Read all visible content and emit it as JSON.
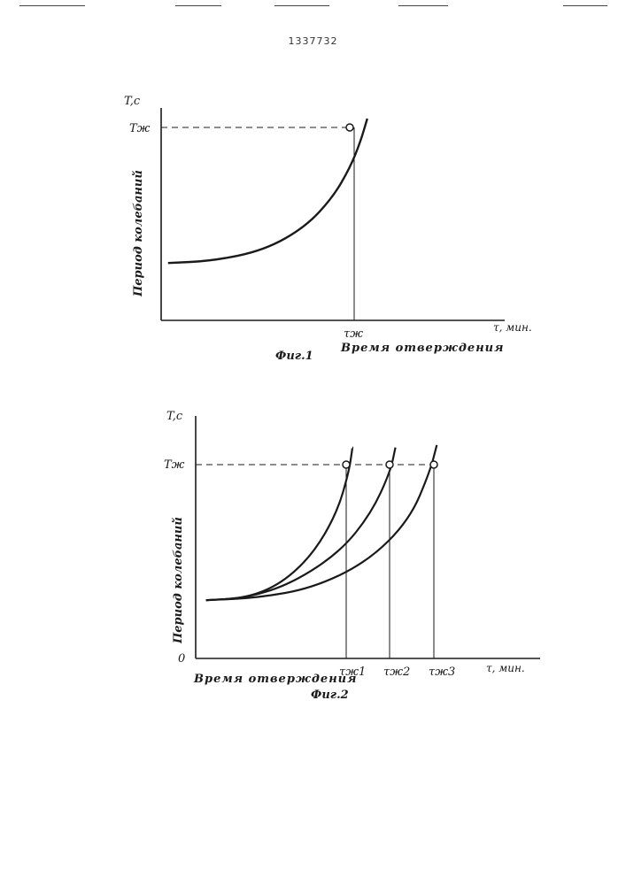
{
  "header": {
    "patent_number": "1337732"
  },
  "chart_data": [
    {
      "type": "line",
      "caption": "Фиг.1",
      "ylabel": "Период колебаний",
      "y_unit_label": "T,c",
      "xlabel": "Время отверждения",
      "x_unit_label": "τ, мин.",
      "ytick_labels": [
        "Tж"
      ],
      "xtick_labels": [
        "τж"
      ],
      "xlim": [
        0,
        1
      ],
      "ylim": [
        0,
        1
      ],
      "threshold": {
        "label": "Tж",
        "value": 0.91
      },
      "series": [
        {
          "name": "curve",
          "x": [
            0.02,
            0.15,
            0.3,
            0.42,
            0.5,
            0.55,
            0.58,
            0.6
          ],
          "y": [
            0.27,
            0.28,
            0.33,
            0.44,
            0.58,
            0.72,
            0.84,
            0.95
          ]
        }
      ],
      "markers": [
        {
          "label": "τж",
          "x": 0.57,
          "y": 0.91
        }
      ]
    },
    {
      "type": "line",
      "caption": "Фиг.2",
      "ylabel": "Период колебаний",
      "y_unit_label": "T,c",
      "origin_label": "0",
      "xlabel": "Время отверждения",
      "x_unit_label": "τ, мин.",
      "ytick_labels": [
        "Tж"
      ],
      "xtick_labels": [
        "τж1",
        "τж2",
        "τж3"
      ],
      "xlim": [
        0,
        1
      ],
      "ylim": [
        0,
        1
      ],
      "threshold": {
        "label": "Tж",
        "value": 0.8
      },
      "series": [
        {
          "name": "curve-1",
          "x": [
            0.03,
            0.15,
            0.25,
            0.34,
            0.41,
            0.445,
            0.455
          ],
          "y": [
            0.24,
            0.25,
            0.31,
            0.43,
            0.6,
            0.77,
            0.87
          ]
        },
        {
          "name": "curve-2",
          "x": [
            0.03,
            0.15,
            0.28,
            0.42,
            0.51,
            0.565,
            0.58
          ],
          "y": [
            0.24,
            0.25,
            0.31,
            0.44,
            0.6,
            0.77,
            0.87
          ]
        },
        {
          "name": "curve-3",
          "x": [
            0.03,
            0.18,
            0.34,
            0.5,
            0.62,
            0.68,
            0.7
          ],
          "y": [
            0.24,
            0.25,
            0.29,
            0.4,
            0.57,
            0.77,
            0.88
          ]
        }
      ],
      "markers": [
        {
          "label": "τж1",
          "x": 0.44,
          "y": 0.8
        },
        {
          "label": "τж2",
          "x": 0.56,
          "y": 0.8
        },
        {
          "label": "τж3",
          "x": 0.67,
          "y": 0.8
        }
      ]
    }
  ]
}
